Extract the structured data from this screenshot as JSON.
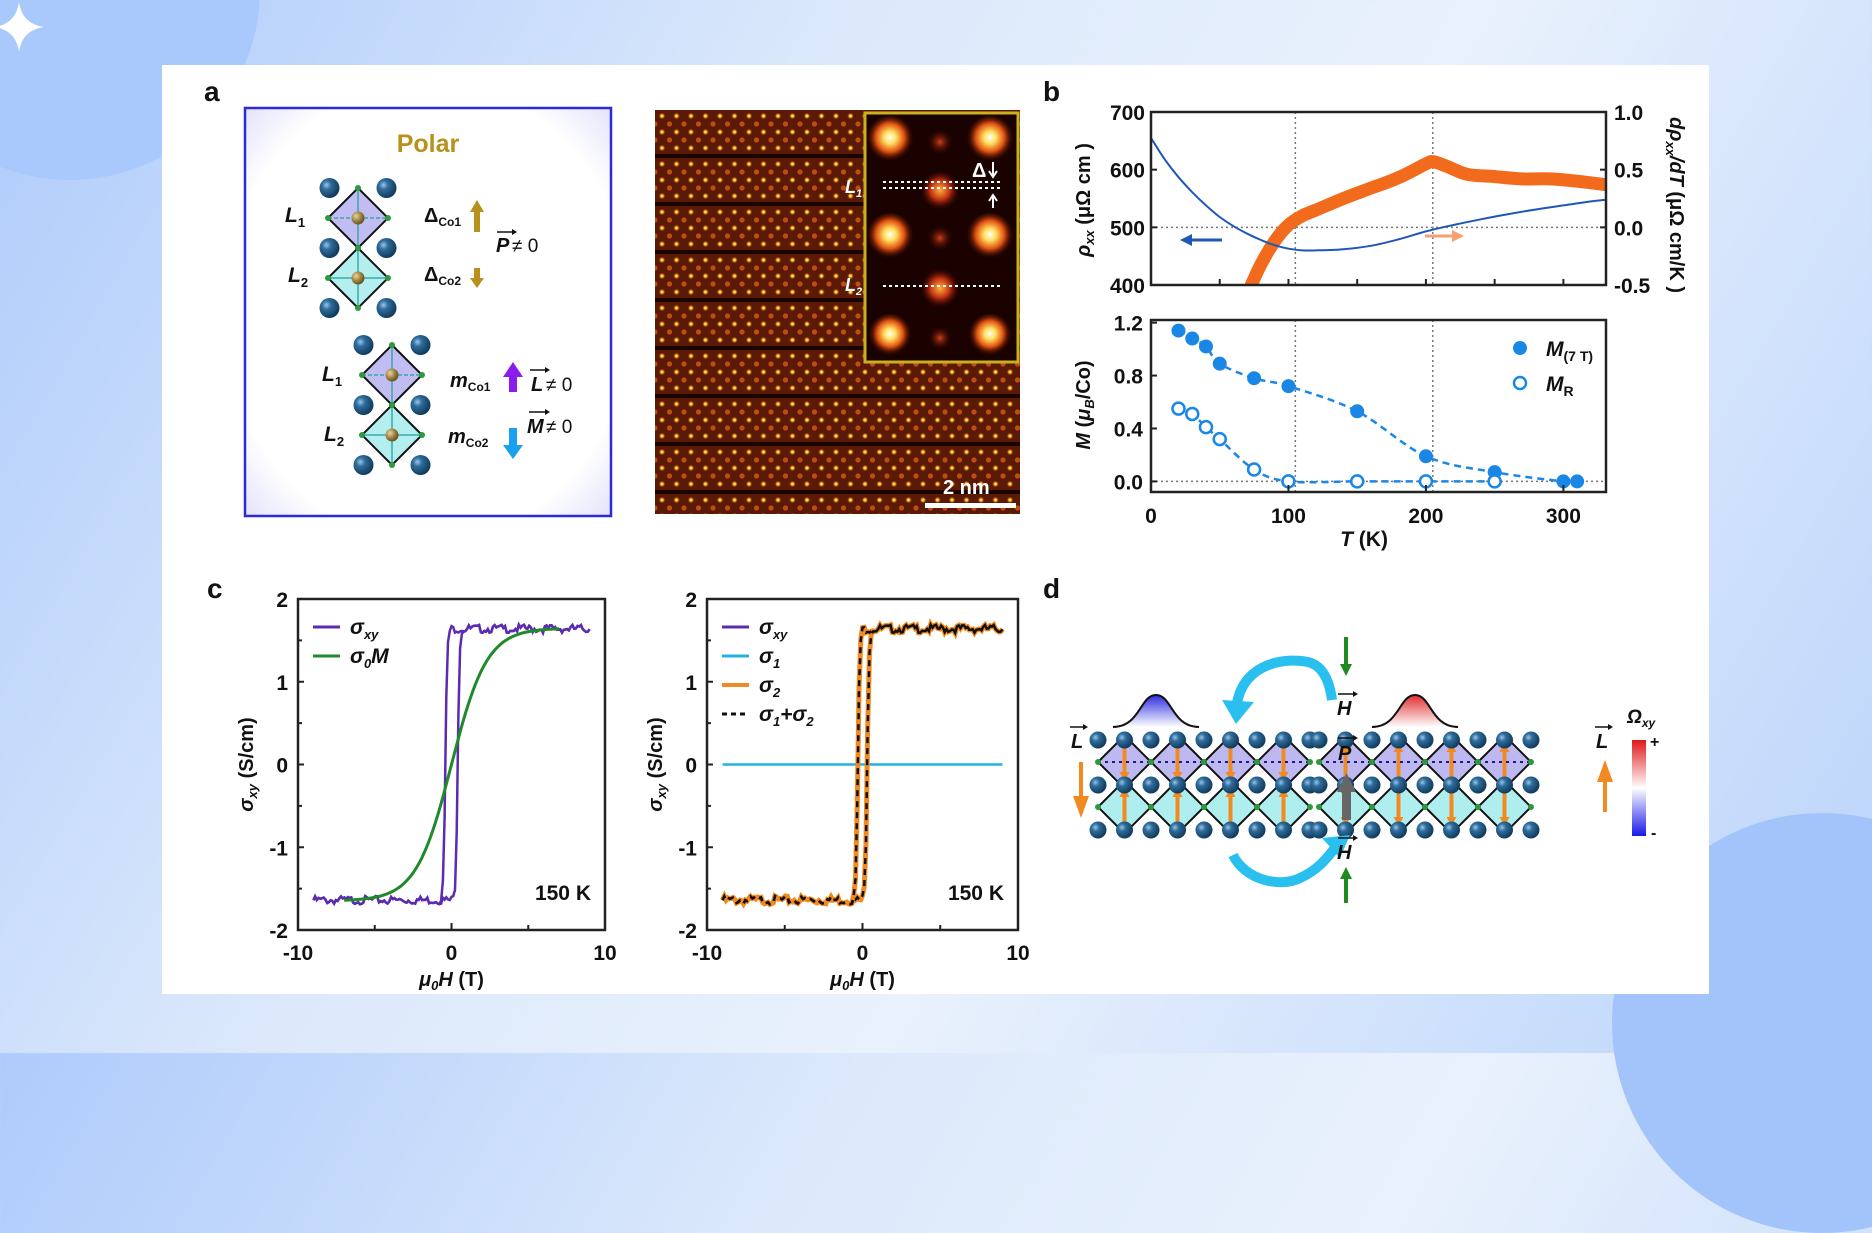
{
  "figure": {
    "panel_labels": [
      "a",
      "b",
      "c",
      "d"
    ]
  },
  "panel_a": {
    "box_title": "Polar",
    "upper": {
      "L1": "L",
      "L1_sub": "1",
      "L2": "L",
      "L2_sub": "2",
      "delta1": "Δ",
      "delta1_sub": "Co1",
      "delta2": "Δ",
      "delta2_sub": "Co2",
      "P_label": "P",
      "P_neq": "≠ 0"
    },
    "lower": {
      "L1": "L",
      "L1_sub": "1",
      "L2": "L",
      "L2_sub": "2",
      "m1": "m",
      "m1_sub": "Co1",
      "m2": "m",
      "m2_sub": "Co2",
      "L_label": "L",
      "L_neq": "≠ 0",
      "M_label": "M",
      "M_neq": "≠ 0"
    },
    "stem": {
      "inset_L1": "L",
      "inset_L1_sub": "1",
      "inset_L2": "L",
      "inset_L2_sub": "2",
      "delta": "Δ",
      "scale_bar": "2 nm"
    },
    "colors": {
      "polar_title": "#b8901c",
      "box_border": "#2a2ad8",
      "purple_arrow": "#8a1cf0",
      "blue_arrow": "#1aa0f0",
      "gold_arrow": "#b8901c"
    }
  },
  "chart_data": [
    {
      "id": "b-top",
      "type": "line",
      "xlabel": "",
      "ylabel": "ρxx (μΩ cm )",
      "ylabel_right": "dρxx/dT (μΩ cm/K )",
      "xlim": [
        0,
        331
      ],
      "ylim": [
        400,
        700
      ],
      "ylim_right": [
        -0.5,
        1.0
      ],
      "yticks": [
        "700",
        "600",
        "500",
        "400"
      ],
      "yticks_right": [
        "1.0",
        "0.5",
        "0.0",
        "-0.5"
      ],
      "reference_lines": {
        "x": [
          105,
          205
        ],
        "y": [
          500
        ]
      },
      "series": [
        {
          "name": "ρxx",
          "axis": "left",
          "color": "#1f57b8",
          "x": [
            0,
            10,
            20,
            30,
            40,
            50,
            60,
            70,
            80,
            90,
            100,
            110,
            120,
            140,
            160,
            180,
            200,
            220,
            240,
            260,
            280,
            300,
            320,
            331
          ],
          "y": [
            655,
            618,
            587,
            561,
            538,
            518,
            502,
            489,
            478,
            469,
            463,
            460,
            460,
            462,
            468,
            479,
            493,
            504,
            514,
            523,
            531,
            538,
            545,
            548
          ]
        },
        {
          "name": "dρxx/dT",
          "axis": "right",
          "color": "#f26b1d",
          "x": [
            73,
            80,
            90,
            100,
            110,
            120,
            140,
            160,
            180,
            200,
            205,
            215,
            230,
            250,
            270,
            290,
            310,
            331
          ],
          "y": [
            -0.5,
            -0.32,
            -0.12,
            0.02,
            0.1,
            0.15,
            0.25,
            0.34,
            0.43,
            0.55,
            0.57,
            0.53,
            0.46,
            0.44,
            0.42,
            0.42,
            0.4,
            0.37
          ]
        }
      ]
    },
    {
      "id": "b-bottom",
      "type": "scatter",
      "xlabel": "T (K)",
      "ylabel": "M (μB/Co)",
      "xlim": [
        0,
        331
      ],
      "ylim": [
        -0.08,
        1.22
      ],
      "xticks": [
        "0",
        "100",
        "200",
        "300"
      ],
      "yticks": [
        "1.2",
        "0.8",
        "0.4",
        "0.0"
      ],
      "reference_lines": {
        "x": [
          105,
          205
        ],
        "y": [
          0
        ]
      },
      "legend": "top-right",
      "series": [
        {
          "name": "M(7 T)",
          "legend_main": "M",
          "legend_sub": "(7 T)",
          "marker": "filled",
          "color": "#1a86e6",
          "x": [
            20,
            30,
            40,
            50,
            75,
            100,
            150,
            200,
            250,
            300,
            310
          ],
          "y": [
            1.14,
            1.08,
            1.02,
            0.89,
            0.78,
            0.72,
            0.53,
            0.19,
            0.07,
            0.0,
            0.0
          ]
        },
        {
          "name": "MR",
          "legend_main": "M",
          "legend_sub": "R",
          "marker": "open",
          "color": "#1a86e6",
          "x": [
            20,
            30,
            40,
            50,
            75,
            100,
            150,
            200,
            250
          ],
          "y": [
            0.55,
            0.51,
            0.41,
            0.32,
            0.09,
            0.0,
            0.0,
            0.0,
            0.0
          ]
        }
      ]
    },
    {
      "id": "c-left",
      "type": "line",
      "xlabel": "μ0H (T)",
      "ylabel": "σxy (S/cm)",
      "xlim": [
        -10,
        10
      ],
      "ylim": [
        -2,
        2
      ],
      "xticks": [
        "-10",
        "0",
        "10"
      ],
      "yticks": [
        "2",
        "1",
        "0",
        "-1",
        "-2"
      ],
      "annotation": "150 K",
      "legend": "top-left",
      "series": [
        {
          "name": "σxy",
          "legend_main": "σ",
          "legend_sub": "xy",
          "color": "#5b2bb0",
          "shape": "hysteresis",
          "x_range": [
            -9,
            9
          ],
          "saturation": 1.64,
          "coercive_field": 0.4
        },
        {
          "name": "σ0M",
          "legend_main": "σ",
          "legend_sub": "0",
          "legend_tail": "M",
          "color": "#1f8a2a",
          "shape": "tanh",
          "x_range": [
            -7,
            7
          ],
          "saturation": 1.64,
          "width": 3.0
        }
      ]
    },
    {
      "id": "c-right",
      "type": "line",
      "xlabel": "μ0H (T)",
      "ylabel": "σxy (S/cm)",
      "xlim": [
        -10,
        10
      ],
      "ylim": [
        -2,
        2
      ],
      "xticks": [
        "-10",
        "0",
        "10"
      ],
      "yticks": [
        "2",
        "1",
        "0",
        "-1",
        "-2"
      ],
      "annotation": "150 K",
      "legend": "top-left",
      "series": [
        {
          "name": "σxy",
          "legend_main": "σ",
          "legend_sub": "xy",
          "color": "#5b2bb0",
          "shape": "hysteresis",
          "x_range": [
            -9,
            9
          ],
          "saturation": 1.64,
          "coercive_field": 0.3
        },
        {
          "name": "σ1",
          "legend_main": "σ",
          "legend_sub": "1",
          "color": "#22b4e0",
          "shape": "constant",
          "x_range": [
            -9,
            9
          ],
          "value": 0
        },
        {
          "name": "σ2",
          "legend_main": "σ",
          "legend_sub": "2",
          "color": "#f28a22",
          "shape": "hysteresis",
          "x_range": [
            -9,
            9
          ],
          "saturation": 1.64,
          "coercive_field": 0.3
        },
        {
          "name": "σ1+σ2",
          "legend_main": "σ",
          "legend_sub": "1",
          "legend_tail": "+σ",
          "legend_sub2": "2",
          "color": "#111111",
          "dashed": true,
          "shape": "hysteresis",
          "x_range": [
            -9,
            9
          ],
          "saturation": 1.64,
          "coercive_field": 0.3
        }
      ]
    }
  ],
  "panel_d": {
    "H_label": "H",
    "P_label": "P",
    "L_label": "L",
    "colorbar_title": "Ω",
    "colorbar_sub": "xy",
    "colorbar_plus": "+",
    "colorbar_minus": "-",
    "colors": {
      "switch_arrow": "#29c0f0",
      "field_arrow": "#1f8a1f",
      "P_arrow": "#666666",
      "L_arrow": "#f28a22",
      "berry_neg": "#2d2de0",
      "berry_pos": "#e02d2d"
    }
  }
}
